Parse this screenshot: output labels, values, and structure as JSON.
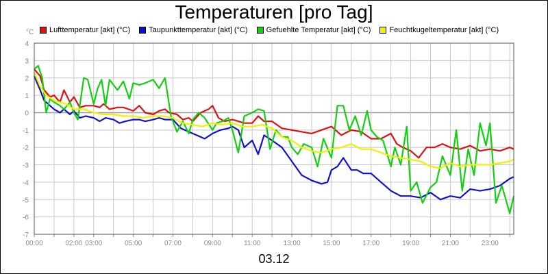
{
  "chart_data": {
    "type": "line",
    "title": "Temperaturen [pro Tag]",
    "unit": "°C",
    "date_label": "03.12",
    "ylim": [
      -7,
      4
    ],
    "yticks": [
      4,
      3,
      2,
      1,
      0,
      -1,
      -2,
      -3,
      -4,
      -5,
      -6,
      -7
    ],
    "xlim": [
      0,
      24.2
    ],
    "xticks": [
      {
        "h": 0,
        "label": "00:00"
      },
      {
        "h": 2,
        "label": "02:00"
      },
      {
        "h": 3,
        "label": "03:00"
      },
      {
        "h": 5,
        "label": "05:00"
      },
      {
        "h": 7,
        "label": "07:00"
      },
      {
        "h": 9,
        "label": "09:00"
      },
      {
        "h": 11,
        "label": "11:00"
      },
      {
        "h": 13,
        "label": "13:00"
      },
      {
        "h": 15,
        "label": "15:00"
      },
      {
        "h": 17,
        "label": "17:00"
      },
      {
        "h": 19,
        "label": "19:00"
      },
      {
        "h": 21,
        "label": "21:00"
      },
      {
        "h": 23,
        "label": "23:00"
      }
    ],
    "grid": true,
    "legend_position": "top",
    "series": [
      {
        "name": "Lufttemperatur [akt] (°C)",
        "color": "#e01010",
        "x": [
          0,
          0.3,
          0.5,
          0.8,
          1.0,
          1.3,
          1.5,
          1.8,
          2.0,
          2.3,
          2.6,
          3.0,
          3.3,
          3.5,
          3.8,
          4.2,
          4.5,
          5.0,
          5.3,
          5.6,
          6.0,
          6.3,
          6.6,
          6.8,
          7.2,
          7.5,
          7.8,
          8.0,
          8.4,
          8.8,
          9.0,
          9.3,
          9.6,
          10.0,
          10.3,
          10.6,
          11.0,
          11.3,
          11.6,
          12.0,
          12.5,
          13.0,
          13.5,
          14.0,
          14.5,
          15.0,
          15.5,
          16.0,
          16.5,
          17.0,
          17.5,
          18.0,
          18.3,
          18.6,
          19.0,
          19.4,
          19.8,
          20.2,
          20.6,
          21.0,
          21.5,
          22.0,
          22.5,
          23.0,
          23.5,
          24.0,
          24.2
        ],
        "y": [
          2.5,
          2.1,
          1.3,
          0.9,
          1.0,
          0.6,
          1.3,
          0.6,
          0.9,
          0.3,
          0.4,
          0.4,
          0.3,
          0.5,
          0.2,
          0.3,
          0.3,
          0.1,
          0.4,
          0.0,
          -0.1,
          0.1,
          0.2,
          0.0,
          -0.1,
          -0.4,
          -0.3,
          -0.5,
          0.0,
          0.2,
          0.4,
          -0.3,
          -0.5,
          -0.4,
          -0.5,
          -0.6,
          -0.6,
          -0.2,
          -0.5,
          -0.5,
          -0.9,
          -1.0,
          -1.1,
          -1.2,
          -1.0,
          -0.8,
          -1.3,
          -1.0,
          -1.1,
          -1.5,
          -1.5,
          -1.2,
          -1.8,
          -2.0,
          -2.2,
          -2.6,
          -2.0,
          -2.0,
          -1.8,
          -2.0,
          -2.1,
          -1.9,
          -2.2,
          -2.1,
          -2.2,
          -2.0,
          -2.1
        ]
      },
      {
        "name": "Taupunkttemperatur [akt] (°C)",
        "color": "#1010d0",
        "x": [
          0,
          0.3,
          0.5,
          0.8,
          1.0,
          1.3,
          1.5,
          1.8,
          2.0,
          2.3,
          2.6,
          3.0,
          3.3,
          3.6,
          4.0,
          4.3,
          4.6,
          5.0,
          5.3,
          5.6,
          6.0,
          6.3,
          6.6,
          7.0,
          7.4,
          7.8,
          8.2,
          8.6,
          9.0,
          9.4,
          9.8,
          10.0,
          10.3,
          10.6,
          11.0,
          11.3,
          11.6,
          12.0,
          12.5,
          13.0,
          13.5,
          14.0,
          14.5,
          14.8,
          15.0,
          15.3,
          15.6,
          16.0,
          16.3,
          16.6,
          17.0,
          17.5,
          18.0,
          18.5,
          19.0,
          19.5,
          20.0,
          20.5,
          21.0,
          21.5,
          22.0,
          22.5,
          23.0,
          23.5,
          24.0,
          24.2
        ],
        "y": [
          2.1,
          1.3,
          0.7,
          0.4,
          0.2,
          0.0,
          0.2,
          -0.1,
          0.1,
          -0.3,
          -0.2,
          -0.3,
          -0.5,
          -0.3,
          -0.4,
          -0.6,
          -0.5,
          -0.4,
          -0.4,
          -0.5,
          -0.4,
          -0.3,
          -0.4,
          -0.4,
          -0.9,
          -1.1,
          -1.3,
          -1.5,
          -1.2,
          -1.0,
          -0.9,
          -0.8,
          -1.0,
          -2.0,
          -1.6,
          -2.4,
          -1.3,
          -1.6,
          -2.0,
          -2.8,
          -3.6,
          -3.9,
          -4.1,
          -4.0,
          -3.3,
          -3.1,
          -2.6,
          -3.3,
          -3.3,
          -3.5,
          -3.5,
          -4.0,
          -4.5,
          -4.8,
          -4.8,
          -4.9,
          -4.6,
          -5.0,
          -4.8,
          -4.9,
          -4.4,
          -4.5,
          -4.4,
          -4.2,
          -3.8,
          -3.7
        ]
      },
      {
        "name": "Gefuehlte Temperatur [akt] (°C)",
        "color": "#10d010",
        "x": [
          0,
          0.2,
          0.4,
          0.6,
          0.8,
          1.0,
          1.3,
          1.5,
          1.8,
          2.0,
          2.2,
          2.5,
          2.7,
          3.0,
          3.2,
          3.4,
          3.6,
          3.8,
          4.0,
          4.2,
          4.5,
          4.8,
          5.0,
          5.3,
          5.6,
          6.0,
          6.3,
          6.6,
          6.9,
          7.2,
          7.5,
          7.8,
          8.0,
          8.3,
          8.6,
          9.0,
          9.2,
          9.5,
          9.8,
          10.0,
          10.3,
          10.6,
          11.0,
          11.3,
          11.6,
          11.9,
          12.2,
          12.5,
          12.8,
          13.0,
          13.3,
          13.6,
          14.0,
          14.3,
          14.6,
          15.0,
          15.3,
          15.6,
          15.9,
          16.2,
          16.5,
          16.8,
          17.0,
          17.3,
          17.6,
          18.0,
          18.2,
          18.5,
          18.8,
          19.0,
          19.3,
          19.6,
          20.0,
          20.3,
          20.6,
          21.0,
          21.3,
          21.6,
          21.9,
          22.2,
          22.5,
          22.8,
          23.0,
          23.3,
          23.6,
          24.0,
          24.2
        ],
        "y": [
          2.5,
          2.7,
          2.0,
          0.0,
          0.8,
          0.6,
          0.4,
          0.2,
          0.6,
          0.0,
          -0.4,
          2.0,
          1.9,
          0.5,
          1.4,
          1.9,
          0.4,
          1.9,
          1.6,
          1.3,
          1.8,
          0.8,
          1.7,
          1.6,
          1.7,
          1.9,
          1.4,
          2.0,
          -0.2,
          -1.1,
          -0.5,
          -1.2,
          -0.4,
          0.0,
          -0.3,
          -1.0,
          -0.6,
          -0.5,
          -0.3,
          -1.0,
          -2.3,
          -0.2,
          0.0,
          0.2,
          0.1,
          -2.1,
          -1.0,
          -1.4,
          -1.4,
          -2.0,
          -2.4,
          -1.8,
          -2.0,
          -3.1,
          -1.5,
          -2.6,
          0.4,
          0.4,
          -1.0,
          -0.2,
          -1.3,
          0.1,
          -1.0,
          -1.4,
          -1.6,
          -3.1,
          -2.0,
          -3.0,
          -0.8,
          -4.5,
          -4.0,
          -5.2,
          -4.3,
          -4.0,
          -2.5,
          -3.6,
          -1.0,
          -4.5,
          -2.1,
          -3.6,
          -0.6,
          -1.9,
          -0.6,
          -5.2,
          -4.2,
          -5.8,
          -4.8
        ]
      },
      {
        "name": "Feuchtkugeltemperatur [akt] (°C)",
        "color": "#f0f000",
        "x": [
          0,
          0.3,
          0.6,
          1.0,
          1.3,
          1.6,
          2.0,
          2.5,
          3.0,
          3.5,
          4.0,
          4.5,
          5.0,
          5.5,
          6.0,
          6.5,
          7.0,
          7.5,
          8.0,
          8.5,
          9.0,
          9.5,
          10.0,
          10.5,
          11.0,
          11.5,
          12.0,
          12.5,
          13.0,
          13.5,
          14.0,
          14.5,
          15.0,
          15.5,
          16.0,
          16.5,
          17.0,
          17.5,
          18.0,
          18.5,
          19.0,
          19.5,
          20.0,
          20.5,
          21.0,
          21.5,
          22.0,
          22.5,
          23.0,
          23.5,
          24.0,
          24.2
        ],
        "y": [
          2.3,
          1.5,
          1.0,
          0.7,
          0.6,
          0.5,
          0.2,
          0.2,
          0.0,
          -0.1,
          -0.1,
          -0.2,
          -0.2,
          -0.3,
          -0.2,
          -0.2,
          -0.3,
          -0.6,
          -0.7,
          -0.8,
          -0.6,
          -0.7,
          -0.6,
          -0.8,
          -0.8,
          -0.7,
          -0.9,
          -1.4,
          -1.6,
          -2.0,
          -2.2,
          -2.3,
          -2.1,
          -2.0,
          -1.8,
          -2.1,
          -2.1,
          -2.3,
          -2.5,
          -2.6,
          -2.7,
          -2.8,
          -3.1,
          -3.2,
          -2.9,
          -3.1,
          -3.0,
          -3.0,
          -3.0,
          -2.9,
          -2.8,
          -2.7
        ]
      }
    ]
  }
}
